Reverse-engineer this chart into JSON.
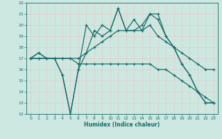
{
  "title": "",
  "xlabel": "Humidex (Indice chaleur)",
  "bg_color": "#cce8e0",
  "line_color": "#1a6b6b",
  "grid_color": "#e8c8c8",
  "xlim": [
    -0.5,
    23.5
  ],
  "ylim": [
    12,
    22
  ],
  "xticks": [
    0,
    1,
    2,
    3,
    4,
    5,
    6,
    7,
    8,
    9,
    10,
    11,
    12,
    13,
    14,
    15,
    16,
    17,
    18,
    19,
    20,
    21,
    22,
    23
  ],
  "yticks": [
    12,
    13,
    14,
    15,
    16,
    17,
    18,
    19,
    20,
    21,
    22
  ],
  "s1_x": [
    0,
    1,
    2,
    3,
    4,
    5,
    6,
    7,
    8,
    9,
    10,
    11,
    12,
    13,
    14,
    15,
    16,
    17,
    18,
    19,
    20,
    21,
    22,
    23
  ],
  "s1_y": [
    17,
    17.5,
    17,
    17,
    15.5,
    12,
    16,
    17.5,
    19.5,
    19,
    19.5,
    21.5,
    19.5,
    19.5,
    20,
    21,
    21,
    19,
    18,
    16.5,
    15.5,
    14,
    13,
    13
  ],
  "s2_x": [
    0,
    1,
    2,
    3,
    4,
    5,
    6,
    7,
    8,
    9,
    10,
    11,
    12,
    13,
    14,
    15,
    16,
    17,
    18,
    19,
    20,
    21,
    22,
    23
  ],
  "s2_y": [
    17,
    17.5,
    17,
    17,
    17,
    17,
    17,
    17.5,
    18,
    18.5,
    19,
    19.5,
    19.5,
    19.5,
    19.5,
    20,
    19,
    18.5,
    18,
    17.5,
    17,
    16.5,
    16,
    16
  ],
  "s3_x": [
    0,
    1,
    2,
    3,
    4,
    5,
    6,
    7,
    8,
    9,
    10,
    11,
    12,
    13,
    14,
    15,
    16,
    17,
    18,
    19,
    20,
    21,
    22,
    23
  ],
  "s3_y": [
    17,
    17,
    17,
    17,
    17,
    17,
    16.5,
    16.5,
    16.5,
    16.5,
    16.5,
    16.5,
    16.5,
    16.5,
    16.5,
    16.5,
    16,
    16,
    15.5,
    15,
    14.5,
    14,
    13.5,
    13
  ],
  "s4_x": [
    0,
    1,
    2,
    3,
    4,
    5,
    6,
    7,
    8,
    9,
    10,
    11,
    12,
    13,
    14,
    15,
    16,
    17,
    18,
    19,
    20,
    21,
    22,
    23
  ],
  "s4_y": [
    17,
    17,
    17,
    17,
    15.5,
    12,
    16,
    20,
    19,
    20,
    19.5,
    21.5,
    19.5,
    20.5,
    19.5,
    21,
    20.5,
    19,
    18,
    16.5,
    15.5,
    14,
    13,
    13
  ]
}
